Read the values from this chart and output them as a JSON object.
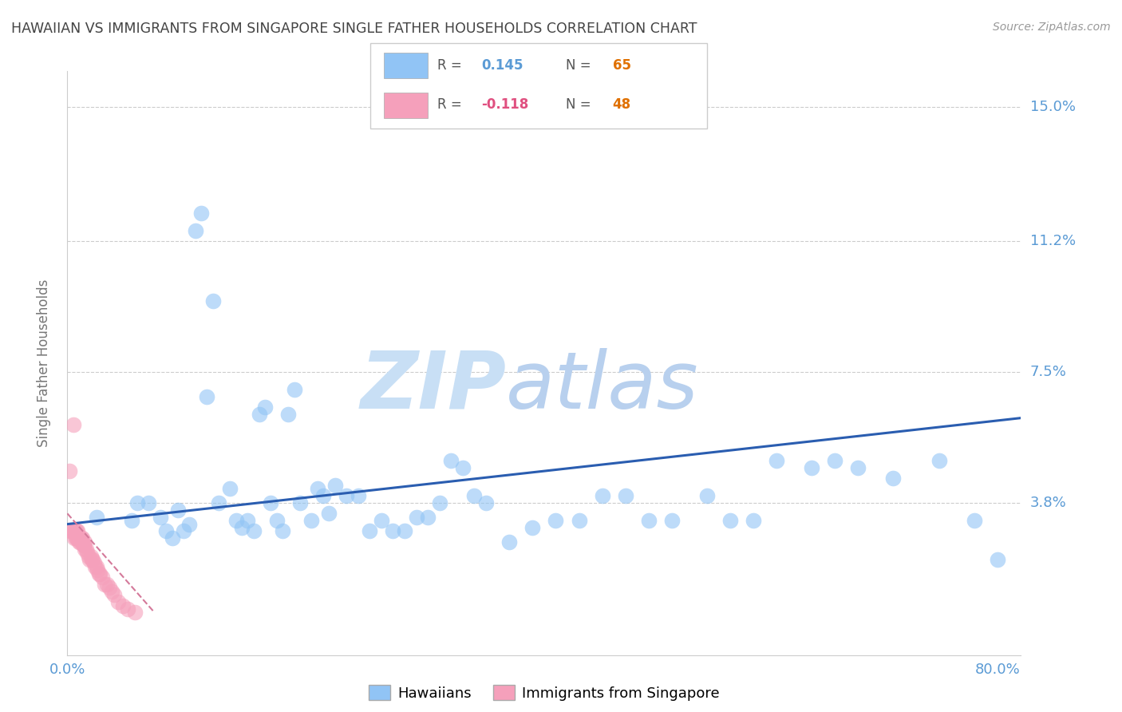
{
  "title": "HAWAIIAN VS IMMIGRANTS FROM SINGAPORE SINGLE FATHER HOUSEHOLDS CORRELATION CHART",
  "source": "Source: ZipAtlas.com",
  "ylabel": "Single Father Households",
  "xlim": [
    0.0,
    0.82
  ],
  "ylim": [
    -0.005,
    0.16
  ],
  "yticks": [
    0.038,
    0.075,
    0.112,
    0.15
  ],
  "ytick_labels": [
    "3.8%",
    "7.5%",
    "11.2%",
    "15.0%"
  ],
  "xticks": [
    0.0,
    0.1,
    0.2,
    0.3,
    0.4,
    0.5,
    0.6,
    0.7,
    0.8
  ],
  "xtick_labels": [
    "0.0%",
    "",
    "",
    "",
    "",
    "",
    "",
    "",
    "80.0%"
  ],
  "hawaiian_R": 0.145,
  "hawaiian_N": 65,
  "singapore_R": -0.118,
  "singapore_N": 48,
  "blue_color": "#91c4f5",
  "pink_color": "#f5a0bb",
  "blue_line_color": "#2a5db0",
  "pink_line_color": "#d4799a",
  "axis_color": "#5b9bd5",
  "watermark_color1": "#c8dff5",
  "watermark_color2": "#b8d0ee",
  "grid_color": "#cccccc",
  "hawaiian_x": [
    0.025,
    0.055,
    0.06,
    0.07,
    0.08,
    0.085,
    0.09,
    0.095,
    0.1,
    0.105,
    0.11,
    0.115,
    0.12,
    0.125,
    0.13,
    0.14,
    0.145,
    0.15,
    0.155,
    0.16,
    0.165,
    0.17,
    0.175,
    0.18,
    0.185,
    0.19,
    0.195,
    0.2,
    0.21,
    0.215,
    0.22,
    0.225,
    0.23,
    0.24,
    0.25,
    0.26,
    0.27,
    0.28,
    0.29,
    0.3,
    0.31,
    0.32,
    0.33,
    0.34,
    0.35,
    0.36,
    0.38,
    0.4,
    0.42,
    0.44,
    0.46,
    0.48,
    0.5,
    0.52,
    0.55,
    0.57,
    0.59,
    0.61,
    0.64,
    0.66,
    0.68,
    0.71,
    0.75,
    0.78,
    0.8
  ],
  "hawaiian_y": [
    0.034,
    0.033,
    0.038,
    0.038,
    0.034,
    0.03,
    0.028,
    0.036,
    0.03,
    0.032,
    0.115,
    0.12,
    0.068,
    0.095,
    0.038,
    0.042,
    0.033,
    0.031,
    0.033,
    0.03,
    0.063,
    0.065,
    0.038,
    0.033,
    0.03,
    0.063,
    0.07,
    0.038,
    0.033,
    0.042,
    0.04,
    0.035,
    0.043,
    0.04,
    0.04,
    0.03,
    0.033,
    0.03,
    0.03,
    0.034,
    0.034,
    0.038,
    0.05,
    0.048,
    0.04,
    0.038,
    0.027,
    0.031,
    0.033,
    0.033,
    0.04,
    0.04,
    0.033,
    0.033,
    0.04,
    0.033,
    0.033,
    0.05,
    0.048,
    0.05,
    0.048,
    0.045,
    0.05,
    0.033,
    0.022
  ],
  "singapore_x": [
    0.002,
    0.003,
    0.004,
    0.005,
    0.006,
    0.006,
    0.007,
    0.007,
    0.008,
    0.008,
    0.009,
    0.009,
    0.01,
    0.01,
    0.011,
    0.011,
    0.012,
    0.012,
    0.013,
    0.013,
    0.014,
    0.014,
    0.015,
    0.015,
    0.016,
    0.017,
    0.018,
    0.019,
    0.02,
    0.021,
    0.022,
    0.023,
    0.024,
    0.025,
    0.026,
    0.027,
    0.028,
    0.03,
    0.032,
    0.034,
    0.036,
    0.038,
    0.04,
    0.044,
    0.048,
    0.052,
    0.058,
    0.002
  ],
  "singapore_y": [
    0.03,
    0.03,
    0.03,
    0.06,
    0.028,
    0.03,
    0.028,
    0.03,
    0.028,
    0.03,
    0.028,
    0.03,
    0.028,
    0.027,
    0.027,
    0.028,
    0.027,
    0.028,
    0.027,
    0.028,
    0.026,
    0.026,
    0.025,
    0.027,
    0.025,
    0.024,
    0.023,
    0.022,
    0.023,
    0.022,
    0.022,
    0.021,
    0.02,
    0.02,
    0.019,
    0.018,
    0.018,
    0.017,
    0.015,
    0.015,
    0.014,
    0.013,
    0.012,
    0.01,
    0.009,
    0.008,
    0.007,
    0.047
  ]
}
